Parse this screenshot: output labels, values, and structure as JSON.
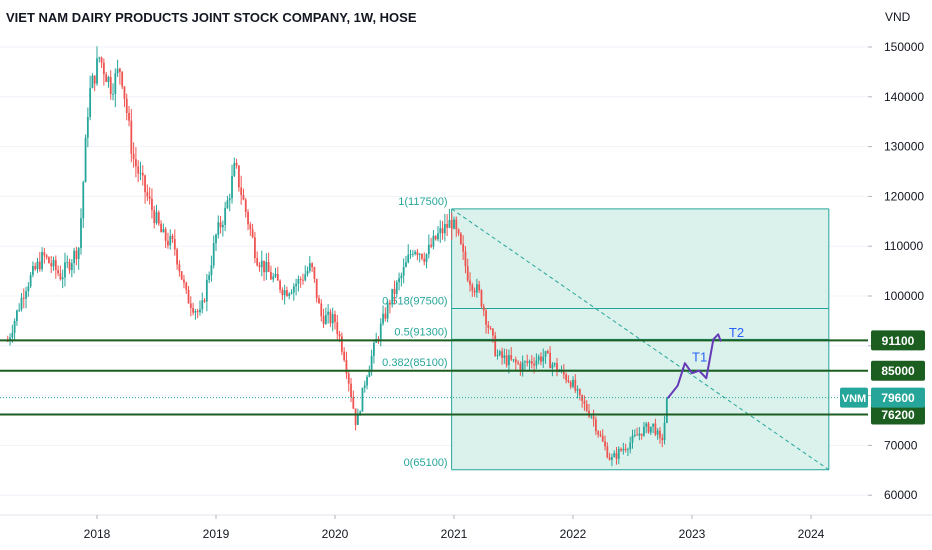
{
  "colors": {
    "up": "#26a69a",
    "down": "#ef5350",
    "level_line": "#1b5e20",
    "fib": "#26a69a",
    "fib_fill": "#d4f0e8",
    "price_line": "#26a69a",
    "path": "#673ab7",
    "note": "#2962ff",
    "grid": "#f0f3fa"
  },
  "chart_data": {
    "type": "candlestick",
    "title": "VIET NAM DAIRY PRODUCTS JOINT STOCK COMPANY, 1W, HOSE",
    "currency": "VND",
    "ylim": [
      55000,
      155000
    ],
    "xlim": [
      2017.25,
      2024.62
    ],
    "y_ticks": [
      {
        "value": 60000,
        "label": "60000"
      },
      {
        "value": 70000,
        "label": "70000"
      },
      {
        "value": 80000,
        "label": "80000"
      },
      {
        "value": 90000,
        "label": "90000"
      },
      {
        "value": 100000,
        "label": "100000"
      },
      {
        "value": 110000,
        "label": "110000"
      },
      {
        "value": 120000,
        "label": "120000"
      },
      {
        "value": 130000,
        "label": "130000"
      },
      {
        "value": 140000,
        "label": "140000"
      },
      {
        "value": 150000,
        "label": "150000"
      }
    ],
    "x_ticks": [
      {
        "value": 2018,
        "label": "2018"
      },
      {
        "value": 2019,
        "label": "2019"
      },
      {
        "value": 2020,
        "label": "2020"
      },
      {
        "value": 2021,
        "label": "2021"
      },
      {
        "value": 2022,
        "label": "2022"
      },
      {
        "value": 2023,
        "label": "2023"
      },
      {
        "value": 2024,
        "label": "2024"
      }
    ],
    "price_path": [
      [
        2017.25,
        91000
      ],
      [
        2017.4,
        102000
      ],
      [
        2017.55,
        108000
      ],
      [
        2017.7,
        104000
      ],
      [
        2017.85,
        110000
      ],
      [
        2017.93,
        140000
      ],
      [
        2018.02,
        148000
      ],
      [
        2018.12,
        142000
      ],
      [
        2018.2,
        146000
      ],
      [
        2018.3,
        128000
      ],
      [
        2018.42,
        120000
      ],
      [
        2018.55,
        112000
      ],
      [
        2018.65,
        110000
      ],
      [
        2018.75,
        100000
      ],
      [
        2018.87,
        96000
      ],
      [
        2019.0,
        112000
      ],
      [
        2019.08,
        117000
      ],
      [
        2019.16,
        126000
      ],
      [
        2019.24,
        118000
      ],
      [
        2019.34,
        108000
      ],
      [
        2019.46,
        104000
      ],
      [
        2019.58,
        101000
      ],
      [
        2019.7,
        103000
      ],
      [
        2019.8,
        106000
      ],
      [
        2019.88,
        96000
      ],
      [
        2020.0,
        95000
      ],
      [
        2020.08,
        88000
      ],
      [
        2020.18,
        74000
      ],
      [
        2020.26,
        84000
      ],
      [
        2020.36,
        92000
      ],
      [
        2020.46,
        99000
      ],
      [
        2020.56,
        104000
      ],
      [
        2020.66,
        110000
      ],
      [
        2020.76,
        108000
      ],
      [
        2020.86,
        112000
      ],
      [
        2020.98,
        115000
      ],
      [
        2021.04,
        111000
      ],
      [
        2021.12,
        104000
      ],
      [
        2021.22,
        100000
      ],
      [
        2021.3,
        93000
      ],
      [
        2021.36,
        88000
      ],
      [
        2021.46,
        87000
      ],
      [
        2021.56,
        86000
      ],
      [
        2021.66,
        87000
      ],
      [
        2021.76,
        88000
      ],
      [
        2021.88,
        85000
      ],
      [
        2021.98,
        83000
      ],
      [
        2022.06,
        79000
      ],
      [
        2022.16,
        76000
      ],
      [
        2022.24,
        71000
      ],
      [
        2022.32,
        67000
      ],
      [
        2022.4,
        69000
      ],
      [
        2022.5,
        71000
      ],
      [
        2022.58,
        73000
      ],
      [
        2022.68,
        74000
      ],
      [
        2022.74,
        70000
      ],
      [
        2022.8,
        79600
      ]
    ],
    "fib_levels": [
      {
        "ratio": 1,
        "value": 117500,
        "label": "1(117500)"
      },
      {
        "ratio": 0.618,
        "value": 97500,
        "label": "0.618(97500)"
      },
      {
        "ratio": 0.5,
        "value": 91300,
        "label": "0.5(91300)"
      },
      {
        "ratio": 0.382,
        "value": 85100,
        "label": "0.382(85100)"
      },
      {
        "ratio": 0,
        "value": 65100,
        "label": "0(65100)"
      }
    ],
    "fib_range_x": [
      2020.98,
      2024.15
    ],
    "levels": [
      {
        "value": 91100,
        "label": "91100"
      },
      {
        "value": 85000,
        "label": "85000"
      },
      {
        "value": 76200,
        "label": "76200"
      }
    ],
    "last_price": {
      "value": 79600,
      "label": "79600",
      "symbol": "VNM"
    },
    "trendline": {
      "from": [
        2020.98,
        117500
      ],
      "to": [
        2024.15,
        65100
      ]
    },
    "projection": [
      [
        2022.8,
        79600
      ],
      [
        2022.88,
        82000
      ],
      [
        2022.94,
        86500
      ],
      [
        2023.0,
        84500
      ],
      [
        2023.06,
        85000
      ],
      [
        2023.12,
        83500
      ],
      [
        2023.18,
        91300
      ],
      [
        2023.22,
        92300
      ],
      [
        2023.24,
        91000
      ]
    ],
    "annotations": [
      {
        "text": "T1",
        "x": 2023.0,
        "y": 86800
      },
      {
        "text": "T2",
        "x": 2023.31,
        "y": 91800
      }
    ]
  }
}
